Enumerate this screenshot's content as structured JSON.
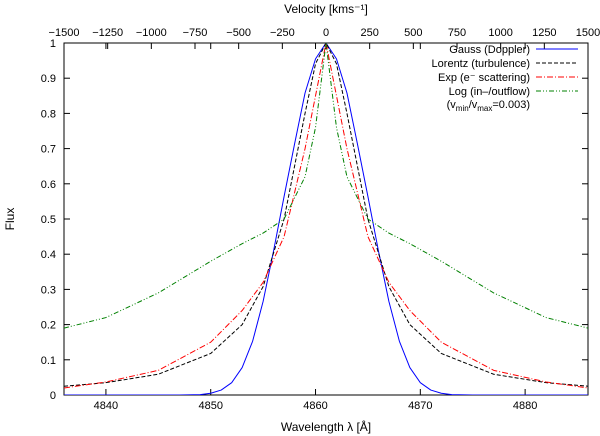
{
  "chart_data": {
    "type": "line",
    "xlabel": "Wavelength λ [Å]",
    "ylabel": "Flux",
    "x2label": "Velocity [kms⁻¹]",
    "xlim": [
      4836,
      4886
    ],
    "ylim": [
      0,
      1
    ],
    "x2lim": [
      -1500,
      1500
    ],
    "x_ticks": [
      4840,
      4850,
      4860,
      4870,
      4880
    ],
    "y_ticks": [
      0,
      0.1,
      0.2,
      0.3,
      0.4,
      0.5,
      0.6,
      0.7,
      0.8,
      0.9,
      1
    ],
    "y_tick_labels": [
      "0",
      "0.1",
      "0.2",
      "0.3",
      "0.4",
      "0.5",
      "0.6",
      "0.7",
      "0.8",
      "0.9",
      "1"
    ],
    "x2_ticks": [
      -1500,
      -1250,
      -1000,
      -750,
      -500,
      -250,
      0,
      250,
      500,
      750,
      1000,
      1250,
      1500
    ],
    "x2_tick_labels": [
      "−1500",
      "−1250",
      "−1000",
      "−750",
      "−500",
      "−250",
      "0",
      "250",
      "500",
      "750",
      "1000",
      "1250",
      "1500"
    ],
    "line_center": 4861,
    "legend_position": "top-right",
    "grid": false,
    "series": [
      {
        "name": "Gauss (Doppler)",
        "color": "#0000ff",
        "dash": "solid",
        "x": [
          4836,
          4847,
          4849,
          4850,
          4851,
          4852,
          4853,
          4854,
          4855,
          4856,
          4857,
          4858,
          4859,
          4860,
          4861,
          4862,
          4863,
          4864,
          4865,
          4866,
          4867,
          4868,
          4869,
          4870,
          4871,
          4872,
          4873,
          4875,
          4886
        ],
        "y": [
          0,
          0,
          0.001,
          0.005,
          0.014,
          0.035,
          0.078,
          0.153,
          0.266,
          0.41,
          0.564,
          0.713,
          0.858,
          0.955,
          1.0,
          0.955,
          0.858,
          0.713,
          0.564,
          0.41,
          0.266,
          0.153,
          0.078,
          0.035,
          0.014,
          0.005,
          0.001,
          0,
          0
        ]
      },
      {
        "name": "Lorentz (turbulence)",
        "color": "#000000",
        "dash": "dashed",
        "x": [
          4836,
          4840,
          4845,
          4850,
          4853,
          4855,
          4857,
          4859,
          4860,
          4861,
          4862,
          4863,
          4865,
          4867,
          4869,
          4872,
          4877,
          4882,
          4886
        ],
        "y": [
          0.025,
          0.035,
          0.059,
          0.118,
          0.2,
          0.308,
          0.5,
          0.8,
          0.941,
          1.0,
          0.941,
          0.8,
          0.5,
          0.308,
          0.2,
          0.118,
          0.059,
          0.035,
          0.025
        ]
      },
      {
        "name": "Exp (e⁻ scattering)",
        "color": "#ff0000",
        "dash": "dashdot",
        "x": [
          4836,
          4840,
          4845,
          4850,
          4853,
          4855,
          4857,
          4859,
          4860,
          4861,
          4862,
          4863,
          4865,
          4867,
          4869,
          4872,
          4877,
          4882,
          4886
        ],
        "y": [
          0.02,
          0.037,
          0.07,
          0.15,
          0.24,
          0.32,
          0.45,
          0.7,
          0.85,
          1.0,
          0.85,
          0.7,
          0.45,
          0.32,
          0.24,
          0.15,
          0.07,
          0.037,
          0.02
        ]
      },
      {
        "name": "Log (in–/outflow)",
        "name_sub": "(v_min/v_max=0.003)",
        "color": "#008000",
        "dash": "dashdotdot",
        "x": [
          4836,
          4840,
          4845,
          4850,
          4853,
          4855,
          4857,
          4859,
          4860,
          4861,
          4862,
          4863,
          4865,
          4867,
          4869,
          4872,
          4877,
          4882,
          4886
        ],
        "y": [
          0.19,
          0.22,
          0.29,
          0.38,
          0.43,
          0.46,
          0.5,
          0.62,
          0.76,
          1.0,
          0.76,
          0.62,
          0.5,
          0.46,
          0.43,
          0.38,
          0.29,
          0.22,
          0.19
        ]
      }
    ]
  }
}
